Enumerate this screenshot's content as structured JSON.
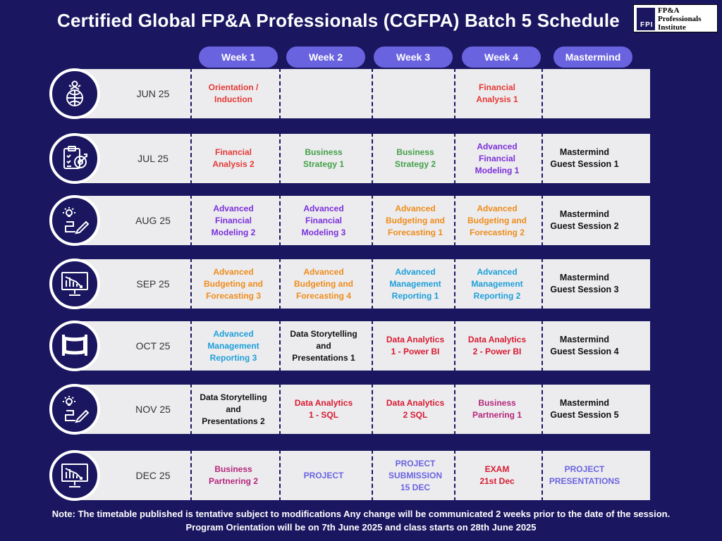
{
  "title": "Certified Global FP&A Professionals (CGFPA) Batch 5 Schedule",
  "logo": {
    "mark": "FPI",
    "text": "FP&A\nProfessionals\nInstitute"
  },
  "columns": [
    "Week 1",
    "Week 2",
    "Week 3",
    "Week 4",
    "Mastermind"
  ],
  "colors": {
    "background": "#1a1660",
    "header_button": "#6a63df",
    "row_bg": "#ececef",
    "red": "#e53935",
    "green": "#43a047",
    "purple": "#7b2fd9",
    "orange": "#ef8c1a",
    "blue": "#1e9fd8",
    "black": "#111111",
    "magenta": "#b5267a",
    "periwinkle": "#6a63df",
    "darkred": "#d81b30"
  },
  "rows": [
    {
      "month": "JUN 25",
      "icon": "globe-person-icon",
      "cells": [
        {
          "text": "Orientation /\nInduction",
          "color": "red"
        },
        {
          "text": "",
          "color": "black"
        },
        {
          "text": "",
          "color": "black"
        },
        {
          "text": "Financial\nAnalysis 1",
          "color": "red"
        },
        {
          "text": "",
          "color": "black"
        }
      ]
    },
    {
      "month": "JUL 25",
      "icon": "clipboard-target-icon",
      "cells": [
        {
          "text": "Financial\nAnalysis 2",
          "color": "red"
        },
        {
          "text": "Business\nStrategy 1",
          "color": "green"
        },
        {
          "text": "Business\nStrategy 2",
          "color": "green"
        },
        {
          "text": "Advanced\nFinancial\nModeling 1",
          "color": "purple"
        },
        {
          "text": "Mastermind\nGuest Session 1",
          "color": "black"
        }
      ]
    },
    {
      "month": "AUG 25",
      "icon": "lightbulb-pencil-icon",
      "cells": [
        {
          "text": "Advanced\nFinancial\nModeling 2",
          "color": "purple"
        },
        {
          "text": "Advanced\nFinancial\nModeling 3",
          "color": "purple"
        },
        {
          "text": "Advanced\nBudgeting and\nForecasting 1",
          "color": "orange"
        },
        {
          "text": "Advanced\nBudgeting and\nForecasting 2",
          "color": "orange"
        },
        {
          "text": "Mastermind\nGuest Session 2",
          "color": "black"
        }
      ]
    },
    {
      "month": "SEP 25",
      "icon": "chart-monitor-icon",
      "cells": [
        {
          "text": "Advanced\nBudgeting and\nForecasting 3",
          "color": "orange"
        },
        {
          "text": "Advanced\nBudgeting and\nForecasting 4",
          "color": "orange"
        },
        {
          "text": "Advanced\nManagement\nReporting 1",
          "color": "blue"
        },
        {
          "text": "Advanced\nManagement\nReporting 2",
          "color": "blue"
        },
        {
          "text": "Mastermind\nGuest Session 3",
          "color": "black"
        }
      ]
    },
    {
      "month": "OCT 25",
      "icon": "finish-ribbon-icon",
      "cells": [
        {
          "text": "Advanced\nManagement\nReporting 3",
          "color": "blue"
        },
        {
          "text": "Data Storytelling\nand\nPresentations 1",
          "color": "black"
        },
        {
          "text": "Data Analytics\n1 - Power BI",
          "color": "darkred"
        },
        {
          "text": "Data Analytics\n2 - Power BI",
          "color": "darkred"
        },
        {
          "text": "Mastermind\nGuest Session 4",
          "color": "black"
        }
      ]
    },
    {
      "month": "NOV 25",
      "icon": "lightbulb-pencil-icon",
      "cells": [
        {
          "text": "Data Storytelling\nand\nPresentations 2",
          "color": "black"
        },
        {
          "text": "Data Analytics\n1 - SQL",
          "color": "darkred"
        },
        {
          "text": "Data Analytics\n2 SQL",
          "color": "darkred"
        },
        {
          "text": "Business\nPartnering 1",
          "color": "magenta"
        },
        {
          "text": "Mastermind\nGuest Session 5",
          "color": "black"
        }
      ]
    },
    {
      "month": "DEC 25",
      "icon": "chart-monitor-icon",
      "cells": [
        {
          "text": "Business\nPartnering 2",
          "color": "magenta"
        },
        {
          "text": "PROJECT",
          "color": "periwinkle"
        },
        {
          "text": "PROJECT\nSUBMISSION\n15 DEC",
          "color": "periwinkle"
        },
        {
          "text": "EXAM\n21st Dec",
          "color": "darkred"
        },
        {
          "text": "PROJECT\nPRESENTATIONS",
          "color": "periwinkle"
        }
      ]
    }
  ],
  "note": {
    "line1": "Note: The timetable published is tentative subject to modifications  Any change will be communicated 2 weeks prior to the date of the session.",
    "line2": "Program Orientation will be on 7th June 2025 and class starts on 28th June 2025"
  }
}
